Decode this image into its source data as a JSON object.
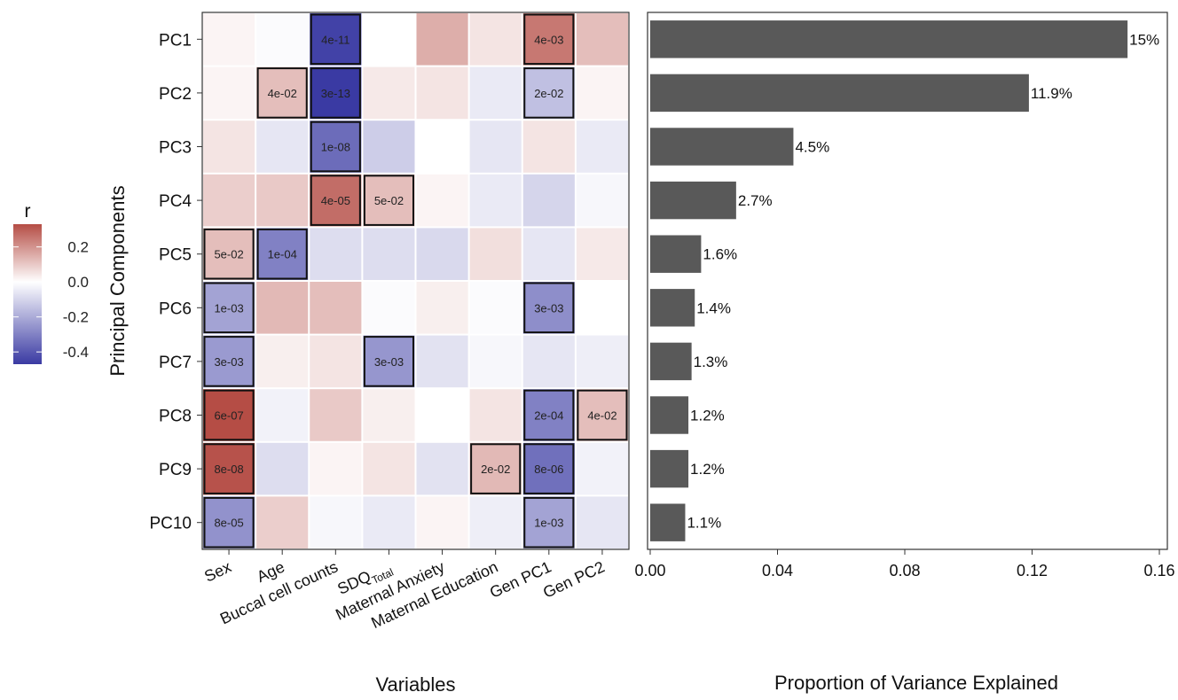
{
  "legend": {
    "title": "r",
    "ticks": [
      "0.2",
      "0.0",
      "-0.2",
      "-0.4"
    ],
    "tick_values": [
      0.2,
      0.0,
      -0.2,
      -0.4
    ],
    "range": [
      -0.47,
      0.33
    ],
    "colors": {
      "low": "#3a3aa3",
      "mid": "#ffffff",
      "high": "#b54d45"
    }
  },
  "chart_data": [
    {
      "type": "heatmap",
      "title": "",
      "xlabel": "Variables",
      "ylabel": "Principal Components",
      "rows": [
        "PC1",
        "PC2",
        "PC3",
        "PC4",
        "PC5",
        "PC6",
        "PC7",
        "PC8",
        "PC9",
        "PC10"
      ],
      "columns": [
        "Sex",
        "Age",
        "Buccal cell counts",
        "SDQ",
        "Maternal Anxiety",
        "Maternal Education",
        "Gen PC1",
        "Gen PC2"
      ],
      "column_subscripts": [
        "",
        "",
        "",
        "Total",
        "",
        "",
        "",
        ""
      ],
      "values": [
        [
          0.02,
          -0.01,
          -0.45,
          0.0,
          0.15,
          0.05,
          0.25,
          0.12
        ],
        [
          0.02,
          0.12,
          -0.47,
          0.04,
          0.05,
          -0.05,
          -0.15,
          0.02
        ],
        [
          0.05,
          -0.06,
          -0.35,
          -0.12,
          0.0,
          -0.06,
          0.05,
          -0.05
        ],
        [
          0.09,
          0.1,
          0.27,
          0.12,
          0.02,
          -0.05,
          -0.1,
          -0.02
        ],
        [
          0.12,
          -0.3,
          -0.08,
          -0.08,
          -0.09,
          0.06,
          -0.06,
          0.04
        ],
        [
          -0.22,
          0.13,
          0.12,
          -0.01,
          0.03,
          -0.01,
          -0.27,
          0.0
        ],
        [
          -0.24,
          0.03,
          0.05,
          -0.25,
          -0.07,
          -0.02,
          -0.06,
          -0.04
        ],
        [
          0.33,
          -0.03,
          0.1,
          0.03,
          0.0,
          0.05,
          -0.3,
          0.12
        ],
        [
          0.32,
          -0.08,
          0.02,
          0.05,
          -0.07,
          0.13,
          -0.34,
          -0.03
        ],
        [
          -0.26,
          0.09,
          -0.02,
          -0.05,
          0.02,
          -0.04,
          -0.22,
          -0.06
        ]
      ],
      "annotations": [
        {
          "row": 0,
          "col": 2,
          "label": "4e-11"
        },
        {
          "row": 0,
          "col": 6,
          "label": "4e-03"
        },
        {
          "row": 1,
          "col": 1,
          "label": "4e-02"
        },
        {
          "row": 1,
          "col": 2,
          "label": "3e-13"
        },
        {
          "row": 1,
          "col": 6,
          "label": "2e-02"
        },
        {
          "row": 2,
          "col": 2,
          "label": "1e-08"
        },
        {
          "row": 3,
          "col": 2,
          "label": "4e-05"
        },
        {
          "row": 3,
          "col": 3,
          "label": "5e-02"
        },
        {
          "row": 4,
          "col": 0,
          "label": "5e-02"
        },
        {
          "row": 4,
          "col": 1,
          "label": "1e-04"
        },
        {
          "row": 5,
          "col": 0,
          "label": "1e-03"
        },
        {
          "row": 5,
          "col": 6,
          "label": "3e-03"
        },
        {
          "row": 6,
          "col": 0,
          "label": "3e-03"
        },
        {
          "row": 6,
          "col": 3,
          "label": "3e-03"
        },
        {
          "row": 7,
          "col": 0,
          "label": "6e-07"
        },
        {
          "row": 7,
          "col": 6,
          "label": "2e-04"
        },
        {
          "row": 7,
          "col": 7,
          "label": "4e-02"
        },
        {
          "row": 8,
          "col": 0,
          "label": "8e-08"
        },
        {
          "row": 8,
          "col": 5,
          "label": "2e-02"
        },
        {
          "row": 8,
          "col": 6,
          "label": "8e-06"
        },
        {
          "row": 9,
          "col": 0,
          "label": "8e-05"
        },
        {
          "row": 9,
          "col": 6,
          "label": "1e-03"
        }
      ]
    },
    {
      "type": "bar",
      "orientation": "horizontal",
      "title": "",
      "xlabel": "Proportion of Variance Explained",
      "ylabel": "",
      "categories": [
        "PC1",
        "PC2",
        "PC3",
        "PC4",
        "PC5",
        "PC6",
        "PC7",
        "PC8",
        "PC9",
        "PC10"
      ],
      "values": [
        0.15,
        0.119,
        0.045,
        0.027,
        0.016,
        0.014,
        0.013,
        0.012,
        0.012,
        0.011
      ],
      "labels": [
        "15%",
        "11.9%",
        "4.5%",
        "2.7%",
        "1.6%",
        "1.4%",
        "1.3%",
        "1.2%",
        "1.2%",
        "1.1%"
      ],
      "xlim": [
        0,
        0.16
      ],
      "xticks": [
        "0.00",
        "0.04",
        "0.08",
        "0.12",
        "0.16"
      ],
      "xtick_values": [
        0.0,
        0.04,
        0.08,
        0.12,
        0.16
      ],
      "bar_color": "#595959"
    }
  ]
}
